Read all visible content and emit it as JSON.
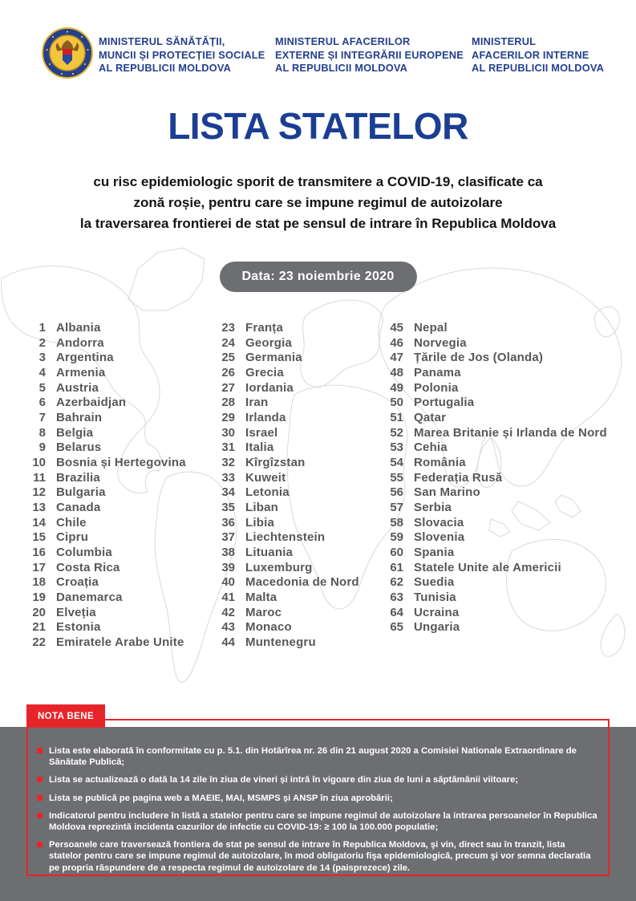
{
  "header": {
    "ministries": [
      {
        "lines": [
          "MINISTERUL SĂNĂTĂȚII,",
          "MUNCII ȘI PROTECȚIEI SOCIALE",
          "AL REPUBLICII MOLDOVA"
        ]
      },
      {
        "lines": [
          "MINISTERUL AFACERILOR",
          "EXTERNE ȘI INTEGRĂRII EUROPENE",
          "AL REPUBLICII MOLDOVA"
        ]
      },
      {
        "lines": [
          "MINISTERUL",
          "AFACERILOR INTERNE",
          "AL REPUBLICII MOLDOVA"
        ]
      }
    ]
  },
  "title": "LISTA STATELOR",
  "subtitle_lines": [
    "cu risc epidemiologic sporit de transmitere a COVID-19, clasificate ca",
    "zonă roșie, pentru care se impune regimul de autoizolare",
    "la traversarea frontierei de stat pe sensul de intrare în Republica Moldova"
  ],
  "date_badge": "Data: 23 noiembrie 2020",
  "countries": [
    "Albania",
    "Andorra",
    "Argentina",
    "Armenia",
    "Austria",
    "Azerbaidjan",
    "Bahrain",
    "Belgia",
    "Belarus",
    "Bosnia și Hertegovina",
    "Brazilia",
    "Bulgaria",
    "Canada",
    "Chile",
    "Cipru",
    "Columbia",
    "Costa Rica",
    "Croația",
    "Danemarca",
    "Elveția",
    "Estonia",
    "Emiratele Arabe Unite",
    "Franța",
    "Georgia",
    "Germania",
    "Grecia",
    "Iordania",
    "Iran",
    "Irlanda",
    "Israel",
    "Italia",
    "Kîrgîzstan",
    "Kuweit",
    "Letonia",
    "Liban",
    "Libia",
    "Liechtenstein",
    "Lituania",
    "Luxemburg",
    "Macedonia de Nord",
    "Malta",
    "Maroc",
    "Monaco",
    "Muntenegru",
    "Nepal",
    "Norvegia",
    "Țările de Jos (Olanda)",
    "Panama",
    "Polonia",
    "Portugalia",
    "Qatar",
    "Marea Britanie și Irlanda de Nord",
    "Cehia",
    "România",
    "Federația Rusă",
    "San Marino",
    "Serbia",
    "Slovacia",
    "Slovenia",
    "Spania",
    "Statele Unite ale Americii",
    "Suedia",
    "Tunisia",
    "Ucraina",
    "Ungaria"
  ],
  "nota_bene": {
    "label": "NOTA BENE",
    "bullets": [
      "Lista este elaborată în conformitate cu p. 5.1. din Hotărîrea nr. 26 din 21 august 2020 a Comisiei Nationale Extraordinare de Sănătate Publică;",
      "Lista se actualizează o dată la 14 zile în ziua de vineri și intră în vigoare din ziua de luni a săptămânii viitoare;",
      "Lista se publică pe pagina web a MAEIE, MAI, MSMPS și ANSP în ziua aprobării;",
      "Indicatorul pentru includere în listă a statelor pentru care se impune regimul de autoizolare la intrarea persoanelor în Republica Moldova reprezintă incidenta cazurilor de infectie cu COVID-19: ≥ 100 la 100.000 populatie;",
      "Persoanele care traversează frontiera de stat pe sensul de intrare în Republica Moldova, şi vin, direct sau în tranzit, lista statelor pentru care se impune regimul de autoizolare, în mod obligatoriu fişa epidemiologică, precum şi vor semna declaratia pe propria răspundere de a respecta regimul de autoizolare de 14 (paisprezece) zile."
    ]
  },
  "colors": {
    "title_blue": "#1b3e94",
    "ministry_navy": "#24408e",
    "accent_red": "#e6252b",
    "gray_panel": "#6d6e71",
    "list_text": "#57585a"
  }
}
